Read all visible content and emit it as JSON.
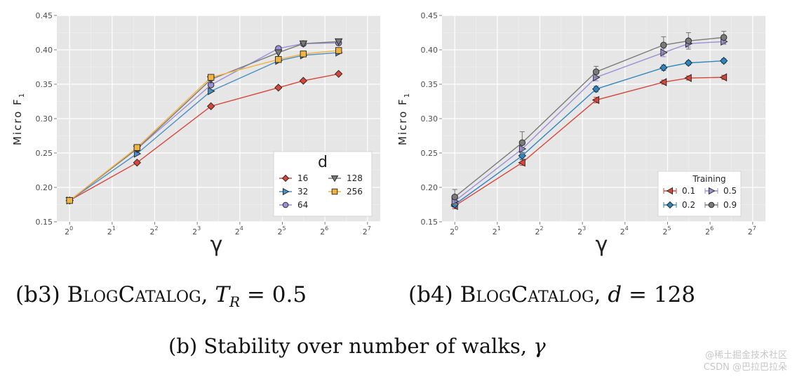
{
  "chart_data": [
    {
      "type": "line",
      "panel": "b3",
      "xlabel": "γ",
      "ylabel": "Micro F1",
      "x_scale": "log2",
      "xlim_exp": [
        -0.3,
        7.3
      ],
      "xticks_exp": [
        0,
        1,
        2,
        3,
        4,
        5,
        6,
        7
      ],
      "ylim": [
        0.15,
        0.45
      ],
      "yticks": [
        "0.15",
        "0.20",
        "0.25",
        "0.30",
        "0.35",
        "0.40",
        "0.45"
      ],
      "grid": true,
      "background": "#e6e6e6",
      "x": [
        1,
        3,
        10,
        30,
        45,
        80
      ],
      "legend": {
        "title": "d",
        "placement": "bottom-right",
        "columns": 2
      },
      "series": [
        {
          "name": "16",
          "color": "#d7463a",
          "marker": "diamond",
          "values": [
            0.181,
            0.236,
            0.318,
            0.345,
            0.355,
            0.365
          ]
        },
        {
          "name": "32",
          "color": "#4a8fc4",
          "marker": "triangle-right",
          "values": [
            0.181,
            0.249,
            0.34,
            0.384,
            0.392,
            0.396
          ]
        },
        {
          "name": "64",
          "color": "#9b8fd6",
          "marker": "circle",
          "values": [
            0.181,
            0.256,
            0.349,
            0.402,
            0.409,
            0.41
          ]
        },
        {
          "name": "128",
          "color": "#7a7a7a",
          "marker": "triangle-down",
          "values": [
            0.181,
            0.256,
            0.357,
            0.396,
            0.409,
            0.412
          ]
        },
        {
          "name": "256",
          "color": "#f2b340",
          "marker": "square",
          "values": [
            0.181,
            0.258,
            0.36,
            0.386,
            0.394,
            0.399
          ]
        }
      ]
    },
    {
      "type": "line",
      "panel": "b4",
      "xlabel": "γ",
      "ylabel": "Micro F1",
      "x_scale": "log2",
      "xlim_exp": [
        -0.3,
        7.3
      ],
      "xticks_exp": [
        0,
        1,
        2,
        3,
        4,
        5,
        6,
        7
      ],
      "ylim": [
        0.15,
        0.45
      ],
      "yticks": [
        "0.15",
        "0.20",
        "0.25",
        "0.30",
        "0.35",
        "0.40",
        "0.45"
      ],
      "grid": true,
      "background": "#e6e6e6",
      "x": [
        1,
        3,
        10,
        30,
        45,
        80
      ],
      "legend": {
        "title": "Training",
        "placement": "bottom-right",
        "columns": 2
      },
      "series": [
        {
          "name": "0.1",
          "color": "#d7463a",
          "marker": "triangle-left",
          "values": [
            0.173,
            0.236,
            0.327,
            0.353,
            0.359,
            0.36
          ],
          "errors": [
            0.004,
            0.004,
            0.004,
            0.003,
            0.003,
            0.003
          ]
        },
        {
          "name": "0.2",
          "color": "#2d86c0",
          "marker": "diamond",
          "values": [
            0.175,
            0.246,
            0.343,
            0.374,
            0.381,
            0.384
          ],
          "errors": [
            0.004,
            0.005,
            0.004,
            0.004,
            0.003,
            0.003
          ]
        },
        {
          "name": "0.5",
          "color": "#9b8fd6",
          "marker": "triangle-right",
          "values": [
            0.18,
            0.256,
            0.36,
            0.396,
            0.409,
            0.412
          ],
          "errors": [
            0.004,
            0.006,
            0.005,
            0.006,
            0.005,
            0.004
          ]
        },
        {
          "name": "0.9",
          "color": "#7a7a7a",
          "marker": "circle",
          "values": [
            0.186,
            0.265,
            0.368,
            0.407,
            0.413,
            0.418
          ],
          "errors": [
            0.011,
            0.016,
            0.008,
            0.012,
            0.012,
            0.009
          ]
        }
      ]
    }
  ],
  "captions": {
    "b3": {
      "prefix": "(b3) ",
      "dataset": "BlogCatalog",
      "sep": ", ",
      "param": "T",
      "sub": "R",
      "value": " = 0.5"
    },
    "b4": {
      "prefix": "(b4) ",
      "dataset": "BlogCatalog",
      "sep": ", ",
      "param": "d",
      "value": " = 128"
    },
    "main": {
      "text": "(b) Stability over number of walks, ",
      "symbol": "γ"
    }
  },
  "watermark": {
    "line1": "@稀土掘金技术社区",
    "line2": "CSDN @巴拉巴拉朵"
  }
}
